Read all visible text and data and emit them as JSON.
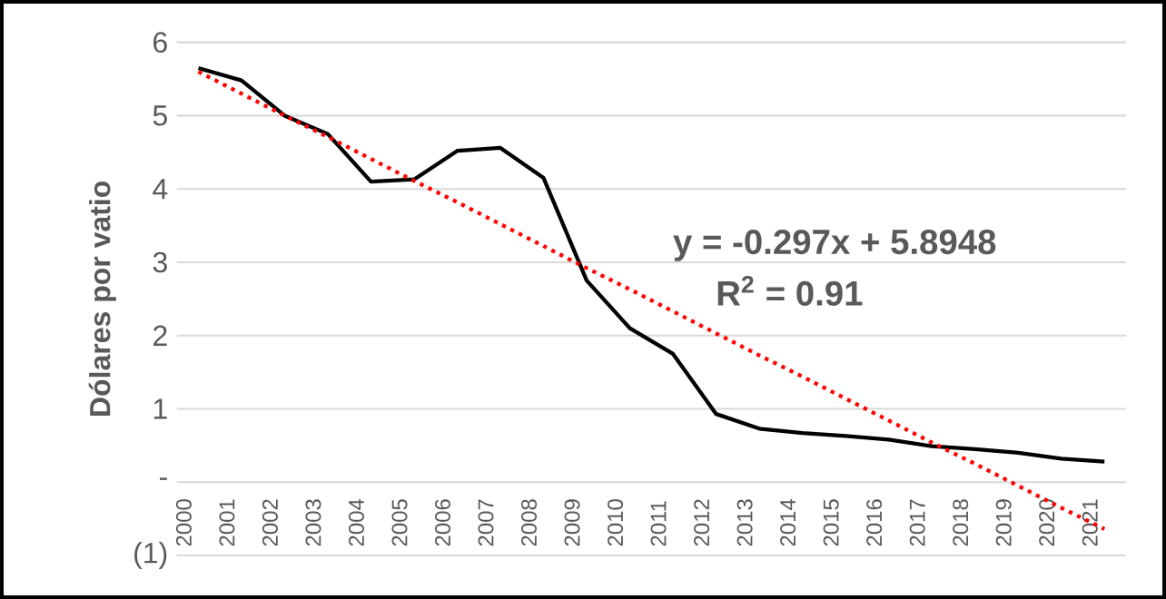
{
  "chart_data": {
    "type": "line",
    "ylabel": "Dólares por vatio",
    "categories": [
      "2000",
      "2001",
      "2002",
      "2003",
      "2004",
      "2005",
      "2006",
      "2007",
      "2008",
      "2009",
      "2010",
      "2011",
      "2012",
      "2013",
      "2014",
      "2015",
      "2016",
      "2017",
      "2018",
      "2019",
      "2020",
      "2021"
    ],
    "series": [
      {
        "color": "#000000",
        "line_style": "solid",
        "values": [
          5.65,
          5.48,
          5.0,
          4.75,
          4.1,
          4.13,
          4.52,
          4.56,
          4.15,
          2.75,
          2.1,
          1.75,
          0.93,
          0.73,
          0.67,
          0.63,
          0.58,
          0.49,
          0.45,
          0.4,
          0.32,
          0.28
        ]
      },
      {
        "color": "#ff0000",
        "line_style": "dotted",
        "values": [
          5.6,
          5.3,
          5.0,
          4.71,
          4.41,
          4.11,
          3.82,
          3.52,
          3.22,
          2.92,
          2.63,
          2.33,
          2.03,
          1.73,
          1.44,
          1.14,
          0.84,
          0.54,
          0.25,
          -0.05,
          -0.35,
          -0.64
        ]
      }
    ],
    "ylim": [
      -1,
      6
    ],
    "yticks": [
      {
        "value": -1,
        "label": "(1)"
      },
      {
        "value": 0,
        "label": "-"
      },
      1,
      2,
      3,
      4,
      5,
      6
    ],
    "grid": "y",
    "annotations": [
      "y = -0.297x + 5.8948",
      "R$^{2}$ = 0.91"
    ]
  }
}
